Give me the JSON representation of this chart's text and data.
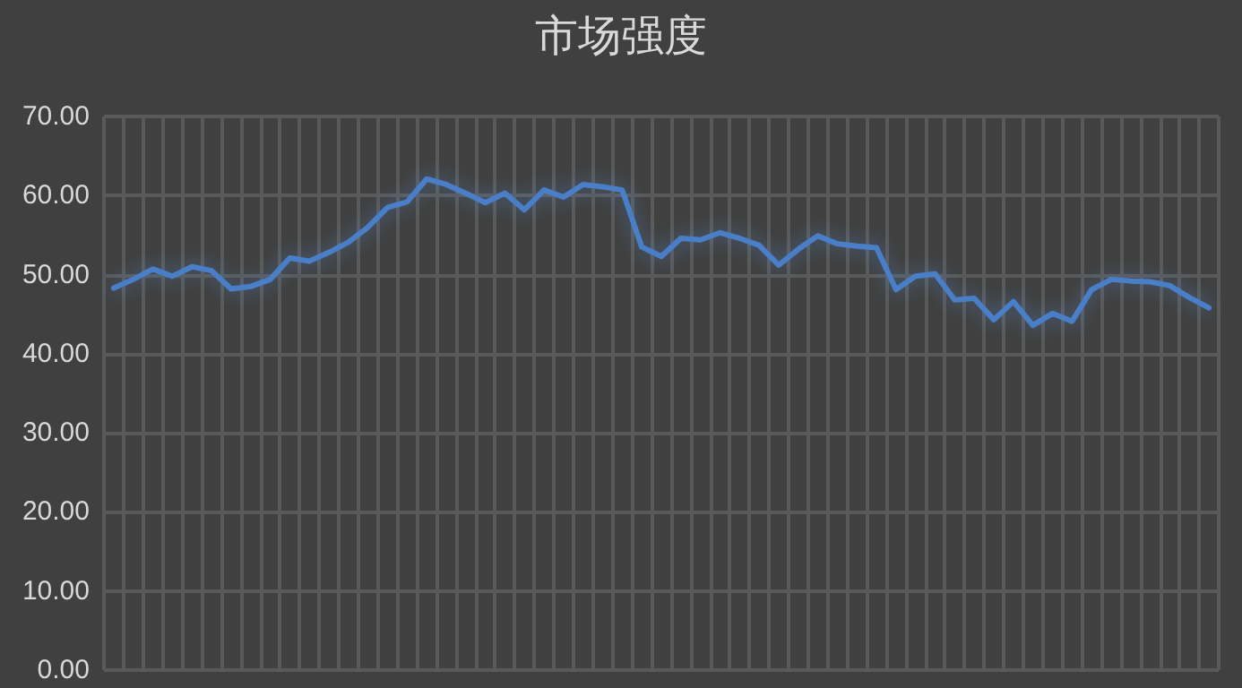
{
  "chart_data": {
    "type": "line",
    "title": "市场强度",
    "categories": [
      null,
      null,
      null,
      null,
      null,
      null,
      null,
      null,
      null,
      null,
      null,
      null,
      null,
      null,
      null,
      null,
      null,
      null,
      null,
      null,
      null,
      null,
      null,
      null,
      null,
      null,
      null,
      null,
      null,
      null,
      null,
      null,
      null,
      null,
      null,
      null,
      null,
      null,
      null,
      null,
      null,
      null,
      null,
      null,
      null,
      null,
      null,
      null,
      null,
      null,
      null,
      null,
      null,
      null,
      null,
      null,
      null
    ],
    "series": [
      {
        "color": "#4a7fc8",
        "values": [
          48.3,
          49.4,
          50.7,
          49.8,
          51.0,
          50.5,
          48.2,
          48.5,
          49.4,
          52.1,
          51.7,
          52.8,
          54.1,
          56.0,
          58.5,
          59.2,
          62.1,
          61.4,
          60.3,
          59.1,
          60.3,
          58.2,
          60.7,
          59.8,
          61.4,
          61.1,
          60.7,
          53.5,
          52.3,
          54.6,
          54.4,
          55.3,
          54.6,
          53.7,
          51.2,
          53.2,
          54.9,
          53.9,
          53.6,
          53.4,
          48.1,
          49.8,
          50.1,
          46.8,
          47.0,
          44.3,
          46.6,
          43.6,
          45.1,
          44.1,
          48.1,
          49.4,
          49.2,
          49.1,
          48.6,
          47.1,
          45.8
        ]
      }
    ],
    "ylim": [
      0,
      70
    ],
    "yticks": [
      {
        "value": 0,
        "label": "0.00"
      },
      {
        "value": 10,
        "label": "10.00"
      },
      {
        "value": 20,
        "label": "20.00"
      },
      {
        "value": 30,
        "label": "30.00"
      },
      {
        "value": 40,
        "label": "40.00"
      },
      {
        "value": 50,
        "label": "50.00"
      },
      {
        "value": 60,
        "label": "60.00"
      },
      {
        "value": 70,
        "label": "70.00"
      }
    ],
    "grid": true,
    "marker": "none",
    "line_style": "solid",
    "tick_labels": "y"
  }
}
